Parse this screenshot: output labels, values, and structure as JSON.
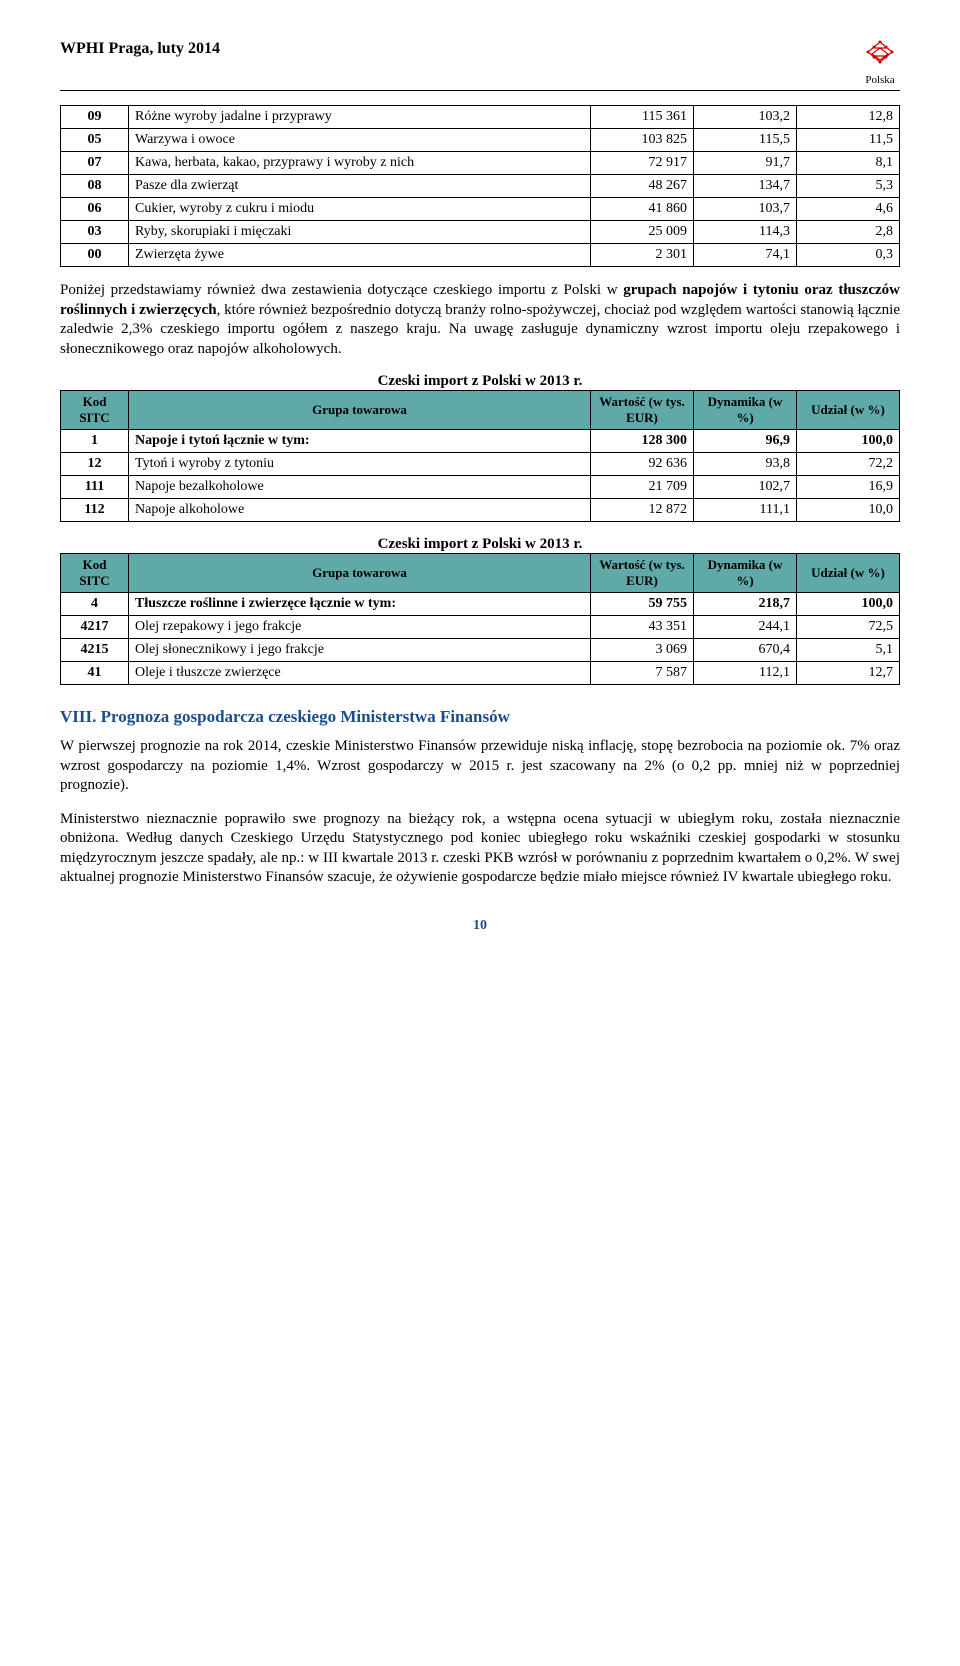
{
  "header": {
    "title": "WPHI  Praga, luty 2014",
    "logo_text": "Polska"
  },
  "table1": {
    "rows": [
      {
        "code": "09",
        "label": "Różne wyroby jadalne i przyprawy",
        "v1": "115 361",
        "v2": "103,2",
        "v3": "12,8"
      },
      {
        "code": "05",
        "label": "Warzywa i owoce",
        "v1": "103 825",
        "v2": "115,5",
        "v3": "11,5"
      },
      {
        "code": "07",
        "label": "Kawa, herbata, kakao, przyprawy i wyroby z nich",
        "v1": "72 917",
        "v2": "91,7",
        "v3": "8,1"
      },
      {
        "code": "08",
        "label": "Pasze dla zwierząt",
        "v1": "48 267",
        "v2": "134,7",
        "v3": "5,3"
      },
      {
        "code": "06",
        "label": "Cukier, wyroby z cukru i miodu",
        "v1": "41 860",
        "v2": "103,7",
        "v3": "4,6"
      },
      {
        "code": "03",
        "label": "Ryby, skorupiaki i mięczaki",
        "v1": "25 009",
        "v2": "114,3",
        "v3": "2,8"
      },
      {
        "code": "00",
        "label": "Zwierzęta żywe",
        "v1": "2 301",
        "v2": "74,1",
        "v3": "0,3"
      }
    ]
  },
  "para1": {
    "pre": "Poniżej przedstawiamy również dwa zestawienia dotyczące czeskiego importu z Polski w ",
    "bold": "grupach napojów i tytoniu oraz tłuszczów roślinnych i zwierzęcych",
    "post": ", które również bezpośrednio dotyczą branży rolno-spożywczej, chociaż pod względem wartości stanowią łącznie zaledwie 2,3% czeskiego importu ogółem z naszego kraju. Na uwagę zasługuje dynamiczny wzrost importu oleju rzepakowego i słonecznikowego oraz napojów alkoholowych."
  },
  "table2": {
    "title": "Czeski import z Polski w 2013 r.",
    "headers": {
      "h1": "Kod SITC",
      "h2": "Grupa towarowa",
      "h3": "Wartość (w tys. EUR)",
      "h4": "Dynamika (w %)",
      "h5": "Udział (w %)"
    },
    "rows": [
      {
        "code": "1",
        "label": "Napoje i tytoń łącznie w tym:",
        "v1": "128 300",
        "v2": "96,9",
        "v3": "100,0",
        "total": true
      },
      {
        "code": "12",
        "label": "Tytoń i wyroby z tytoniu",
        "v1": "92 636",
        "v2": "93,8",
        "v3": "72,2"
      },
      {
        "code": "111",
        "label": "Napoje bezalkoholowe",
        "v1": "21 709",
        "v2": "102,7",
        "v3": "16,9"
      },
      {
        "code": "112",
        "label": "Napoje alkoholowe",
        "v1": "12 872",
        "v2": "111,1",
        "v3": "10,0"
      }
    ]
  },
  "table3": {
    "title": "Czeski import z Polski w 2013 r.",
    "headers": {
      "h1": "Kod SITC",
      "h2": "Grupa towarowa",
      "h3": "Wartość (w tys. EUR)",
      "h4": "Dynamika (w %)",
      "h5": "Udział (w %)"
    },
    "rows": [
      {
        "code": "4",
        "label": "Tłuszcze roślinne i zwierzęce łącznie w tym:",
        "v1": "59 755",
        "v2": "218,7",
        "v3": "100,0",
        "total": true
      },
      {
        "code": "4217",
        "label": "Olej rzepakowy i jego frakcje",
        "v1": "43 351",
        "v2": "244,1",
        "v3": "72,5"
      },
      {
        "code": "4215",
        "label": "Olej słonecznikowy i jego frakcje",
        "v1": "3 069",
        "v2": "670,4",
        "v3": "5,1"
      },
      {
        "code": "41",
        "label": "Oleje i tłuszcze zwierzęce",
        "v1": "7 587",
        "v2": "112,1",
        "v3": "12,7"
      }
    ]
  },
  "section8": {
    "heading": "VIII. Prognoza gospodarcza czeskiego Ministerstwa Finansów",
    "p1": "W pierwszej prognozie na rok 2014, czeskie Ministerstwo Finansów przewiduje niską inflację, stopę bezrobocia na poziomie ok. 7% oraz wzrost gospodarczy na poziomie 1,4%. Wzrost gospodarczy w 2015 r. jest szacowany na 2% (o 0,2 pp. mniej niż w poprzedniej prognozie).",
    "p2": "Ministerstwo nieznacznie poprawiło swe prognozy na bieżący rok, a wstępna ocena sytuacji w ubiegłym roku, została nieznacznie obniżona. Według danych Czeskiego Urzędu Statystycznego pod koniec ubiegłego roku wskaźniki czeskiej gospodarki w stosunku międzyrocznym jeszcze spadały, ale np.: w III kwartale 2013 r. czeski PKB wzrósł w porównaniu z poprzednim kwartałem o 0,2%. W swej aktualnej prognozie Ministerstwo Finansów szacuje, że ożywienie gospodarcze będzie miało miejsce również IV kwartale ubiegłego roku."
  },
  "page_number": "10"
}
